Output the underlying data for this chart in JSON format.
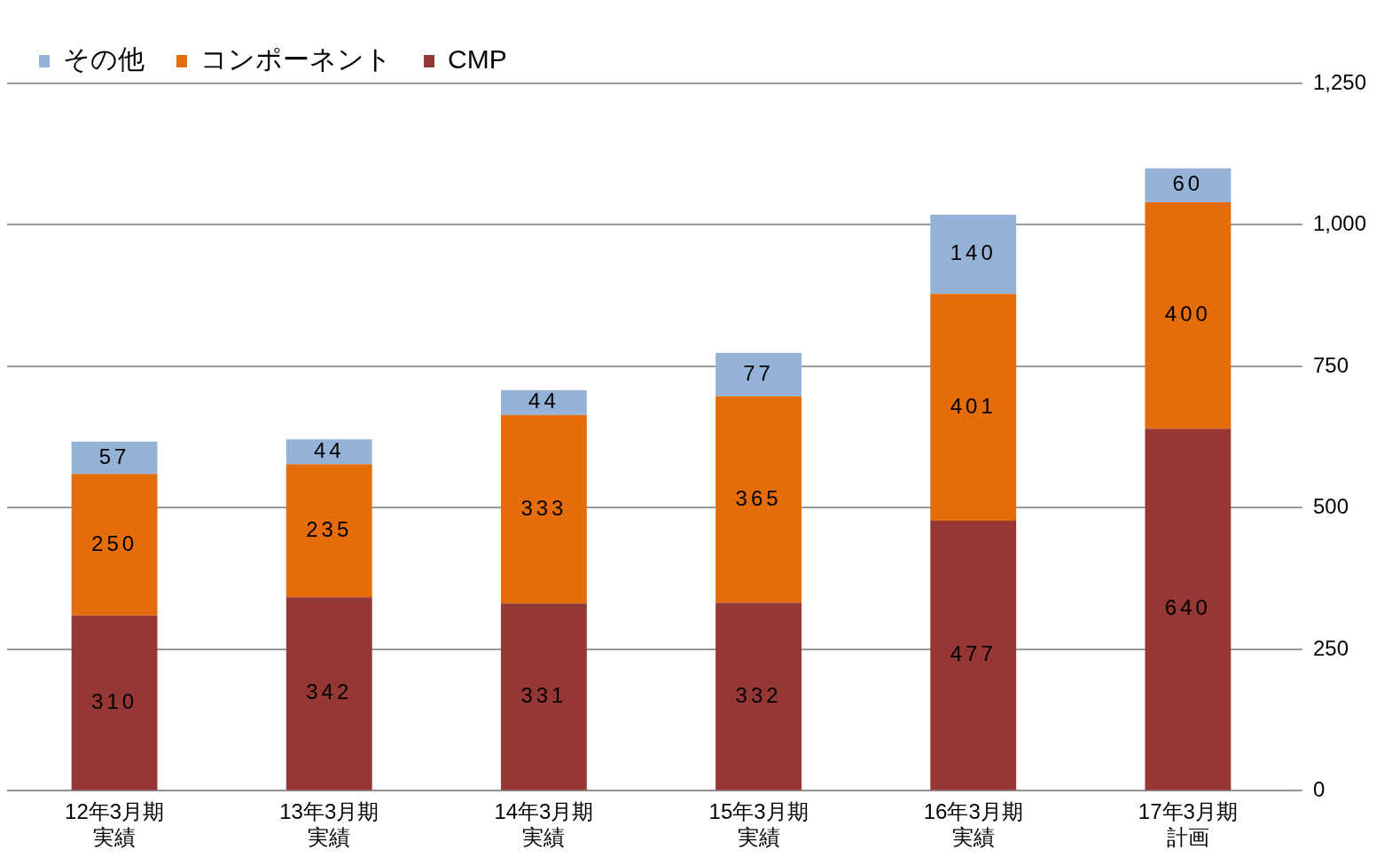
{
  "chart_data": {
    "type": "bar",
    "stacked": true,
    "categories": [
      "12年3月期実績",
      "13年3月期実績",
      "14年3月期実績",
      "15年3月期実績",
      "16年3月期実績",
      "17年3月期計画"
    ],
    "series": [
      {
        "name": "CMP",
        "color": "#953735",
        "values": [
          310,
          342,
          331,
          332,
          477,
          640
        ]
      },
      {
        "name": "コンポーネント",
        "color": "#e46c0a",
        "values": [
          250,
          235,
          333,
          365,
          401,
          400
        ]
      },
      {
        "name": "その他",
        "color": "#95b3d7",
        "values": [
          57,
          44,
          44,
          77,
          140,
          60
        ]
      }
    ],
    "ylim": [
      0,
      1250
    ],
    "yticks": [
      0,
      250,
      500,
      750,
      {
        "value": 1000,
        "label": "1,000"
      },
      {
        "value": 1250,
        "label": "1,250"
      }
    ],
    "grid": "y",
    "legend": "top left",
    "data_labels": true
  }
}
